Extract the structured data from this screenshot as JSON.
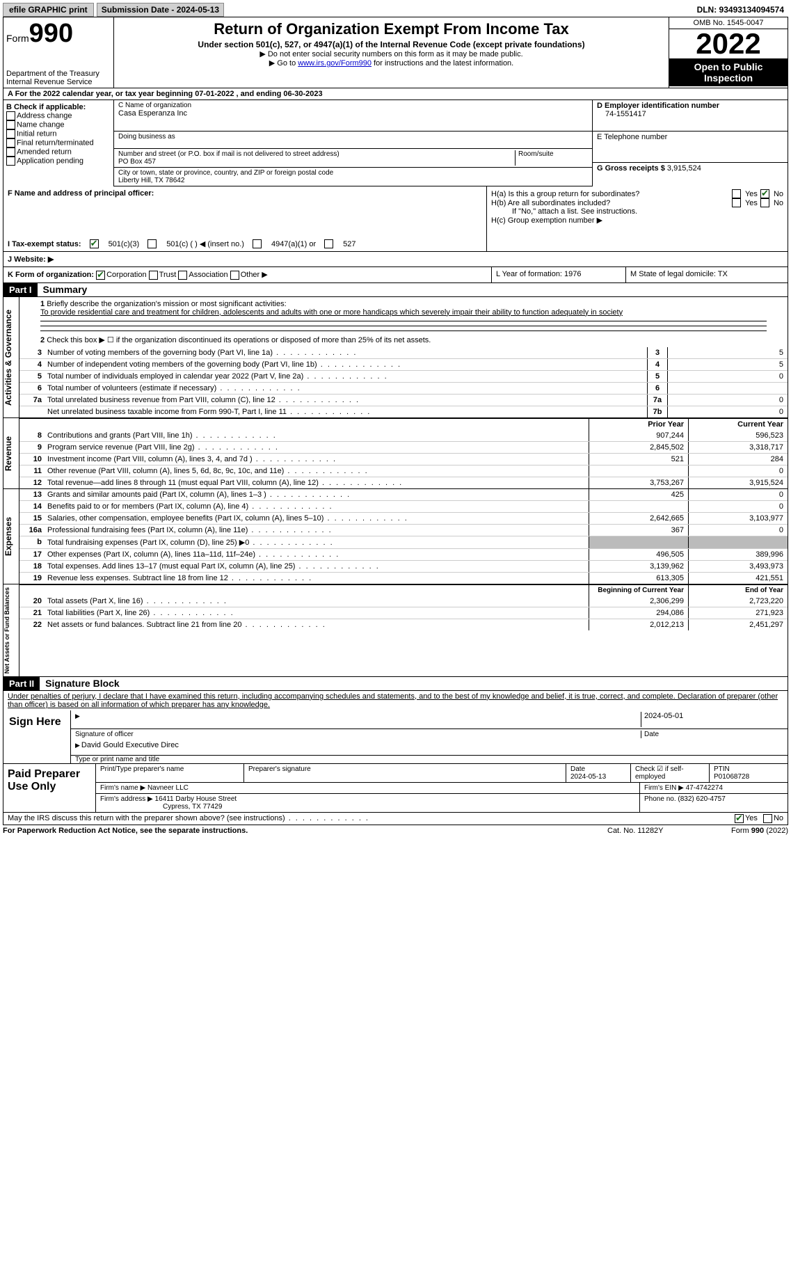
{
  "topbar": {
    "efile": "efile GRAPHIC print",
    "submission": "Submission Date - 2024-05-13",
    "dln": "DLN: 93493134094574"
  },
  "header": {
    "form_label": "Form",
    "form_num": "990",
    "dept": "Department of the Treasury Internal Revenue Service",
    "title": "Return of Organization Exempt From Income Tax",
    "sub": "Under section 501(c), 527, or 4947(a)(1) of the Internal Revenue Code (except private foundations)",
    "note1": "▶ Do not enter social security numbers on this form as it may be made public.",
    "note2_pre": "▶ Go to ",
    "note2_link": "www.irs.gov/Form990",
    "note2_post": " for instructions and the latest information.",
    "omb": "OMB No. 1545-0047",
    "year": "2022",
    "inspect": "Open to Public Inspection"
  },
  "period": "A For the 2022 calendar year, or tax year beginning 07-01-2022    , and ending 06-30-2023",
  "sectionB": {
    "check_label": "B Check if applicable:",
    "items": [
      "Address change",
      "Name change",
      "Initial return",
      "Final return/terminated",
      "Amended return",
      "Application pending"
    ],
    "c_label": "C Name of organization",
    "org": "Casa Esperanza Inc",
    "dba": "Doing business as",
    "street_label": "Number and street (or P.O. box if mail is not delivered to street address)",
    "street": "PO Box 457",
    "room": "Room/suite",
    "city_label": "City or town, state or province, country, and ZIP or foreign postal code",
    "city": "Liberty Hill, TX  78642",
    "d_label": "D Employer identification number",
    "ein": "74-1551417",
    "e_label": "E Telephone number",
    "g_label": "G Gross receipts $",
    "gross": "3,915,524"
  },
  "sectionF": {
    "f_label": "F Name and address of principal officer:",
    "ha": "H(a)  Is this a group return for subordinates?",
    "hb": "H(b)  Are all subordinates included?",
    "hb_note": "If \"No,\" attach a list. See instructions.",
    "hc": "H(c)  Group exemption number ▶"
  },
  "tax": {
    "i": "I   Tax-exempt status:",
    "c3": "501(c)(3)",
    "c": "501(c) (  ) ◀ (insert no.)",
    "a1": "4947(a)(1) or",
    "s527": "527"
  },
  "website": "J   Website: ▶",
  "k": {
    "label": "K Form of organization:",
    "corp": "Corporation",
    "trust": "Trust",
    "assoc": "Association",
    "other": "Other ▶",
    "l": "L Year of formation: 1976",
    "m": "M State of legal domicile: TX"
  },
  "part1": {
    "part": "Part I",
    "title": "Summary",
    "line1_label": "Briefly describe the organization's mission or most significant activities:",
    "mission": "To provide residential care and treatment for children, adolescents and adults with one or more handicaps which severely impair their ability to function adequately in society",
    "line2": "Check this box ▶ ☐  if the organization discontinued its operations or disposed of more than 25% of its net assets.",
    "gov_label": "Activities & Governance",
    "rev_label": "Revenue",
    "exp_label": "Expenses",
    "net_label": "Net Assets or Fund Balances",
    "lines_gov": [
      {
        "n": "3",
        "t": "Number of voting members of the governing body (Part VI, line 1a)",
        "b": "3",
        "v": "5"
      },
      {
        "n": "4",
        "t": "Number of independent voting members of the governing body (Part VI, line 1b)",
        "b": "4",
        "v": "5"
      },
      {
        "n": "5",
        "t": "Total number of individuals employed in calendar year 2022 (Part V, line 2a)",
        "b": "5",
        "v": "0"
      },
      {
        "n": "6",
        "t": "Total number of volunteers (estimate if necessary)",
        "b": "6",
        "v": ""
      },
      {
        "n": "7a",
        "t": "Total unrelated business revenue from Part VIII, column (C), line 12",
        "b": "7a",
        "v": "0"
      },
      {
        "n": "",
        "t": "Net unrelated business taxable income from Form 990-T, Part I, line 11",
        "b": "7b",
        "v": "0"
      }
    ],
    "col_prior": "Prior Year",
    "col_current": "Current Year",
    "lines_rev": [
      {
        "n": "8",
        "t": "Contributions and grants (Part VIII, line 1h)",
        "p": "907,244",
        "c": "596,523"
      },
      {
        "n": "9",
        "t": "Program service revenue (Part VIII, line 2g)",
        "p": "2,845,502",
        "c": "3,318,717"
      },
      {
        "n": "10",
        "t": "Investment income (Part VIII, column (A), lines 3, 4, and 7d )",
        "p": "521",
        "c": "284"
      },
      {
        "n": "11",
        "t": "Other revenue (Part VIII, column (A), lines 5, 6d, 8c, 9c, 10c, and 11e)",
        "p": "",
        "c": "0"
      },
      {
        "n": "12",
        "t": "Total revenue—add lines 8 through 11 (must equal Part VIII, column (A), line 12)",
        "p": "3,753,267",
        "c": "3,915,524"
      }
    ],
    "lines_exp": [
      {
        "n": "13",
        "t": "Grants and similar amounts paid (Part IX, column (A), lines 1–3 )",
        "p": "425",
        "c": "0"
      },
      {
        "n": "14",
        "t": "Benefits paid to or for members (Part IX, column (A), line 4)",
        "p": "",
        "c": "0"
      },
      {
        "n": "15",
        "t": "Salaries, other compensation, employee benefits (Part IX, column (A), lines 5–10)",
        "p": "2,642,665",
        "c": "3,103,977"
      },
      {
        "n": "16a",
        "t": "Professional fundraising fees (Part IX, column (A), line 11e)",
        "p": "367",
        "c": "0"
      },
      {
        "n": "b",
        "t": "Total fundraising expenses (Part IX, column (D), line 25) ▶0",
        "p": "shade",
        "c": "shade"
      },
      {
        "n": "17",
        "t": "Other expenses (Part IX, column (A), lines 11a–11d, 11f–24e)",
        "p": "496,505",
        "c": "389,996"
      },
      {
        "n": "18",
        "t": "Total expenses. Add lines 13–17 (must equal Part IX, column (A), line 25)",
        "p": "3,139,962",
        "c": "3,493,973"
      },
      {
        "n": "19",
        "t": "Revenue less expenses. Subtract line 18 from line 12",
        "p": "613,305",
        "c": "421,551"
      }
    ],
    "col_begin": "Beginning of Current Year",
    "col_end": "End of Year",
    "lines_net": [
      {
        "n": "20",
        "t": "Total assets (Part X, line 16)",
        "p": "2,306,299",
        "c": "2,723,220"
      },
      {
        "n": "21",
        "t": "Total liabilities (Part X, line 26)",
        "p": "294,086",
        "c": "271,923"
      },
      {
        "n": "22",
        "t": "Net assets or fund balances. Subtract line 21 from line 20",
        "p": "2,012,213",
        "c": "2,451,297"
      }
    ]
  },
  "part2": {
    "part": "Part II",
    "title": "Signature Block",
    "declare": "Under penalties of perjury, I declare that I have examined this return, including accompanying schedules and statements, and to the best of my knowledge and belief, it is true, correct, and complete. Declaration of preparer (other than officer) is based on all information of which preparer has any knowledge.",
    "sign_here": "Sign Here",
    "sig_officer": "Signature of officer",
    "sig_date": "2024-05-01",
    "name": "David Gould  Executive Direc",
    "name_label": "Type or print name and title",
    "paid": "Paid Preparer Use Only",
    "prep_name_label": "Print/Type preparer's name",
    "prep_sig_label": "Preparer's signature",
    "date_label": "Date",
    "date": "2024-05-13",
    "check_label": "Check ☑ if self-employed",
    "ptin_label": "PTIN",
    "ptin": "P01068728",
    "firm_name_label": "Firm's name    ▶",
    "firm_name": "Navneer LLC",
    "firm_ein_label": "Firm's EIN ▶",
    "firm_ein": "47-4742274",
    "firm_addr_label": "Firm's address ▶",
    "firm_addr1": "16411 Darby House Street",
    "firm_addr2": "Cypress, TX  77429",
    "phone_label": "Phone no.",
    "phone": "(832) 620-4757",
    "discuss": "May the IRS discuss this return with the preparer shown above? (see instructions)"
  },
  "footer": {
    "left": "For Paperwork Reduction Act Notice, see the separate instructions.",
    "mid": "Cat. No. 11282Y",
    "right": "Form 990 (2022)"
  }
}
